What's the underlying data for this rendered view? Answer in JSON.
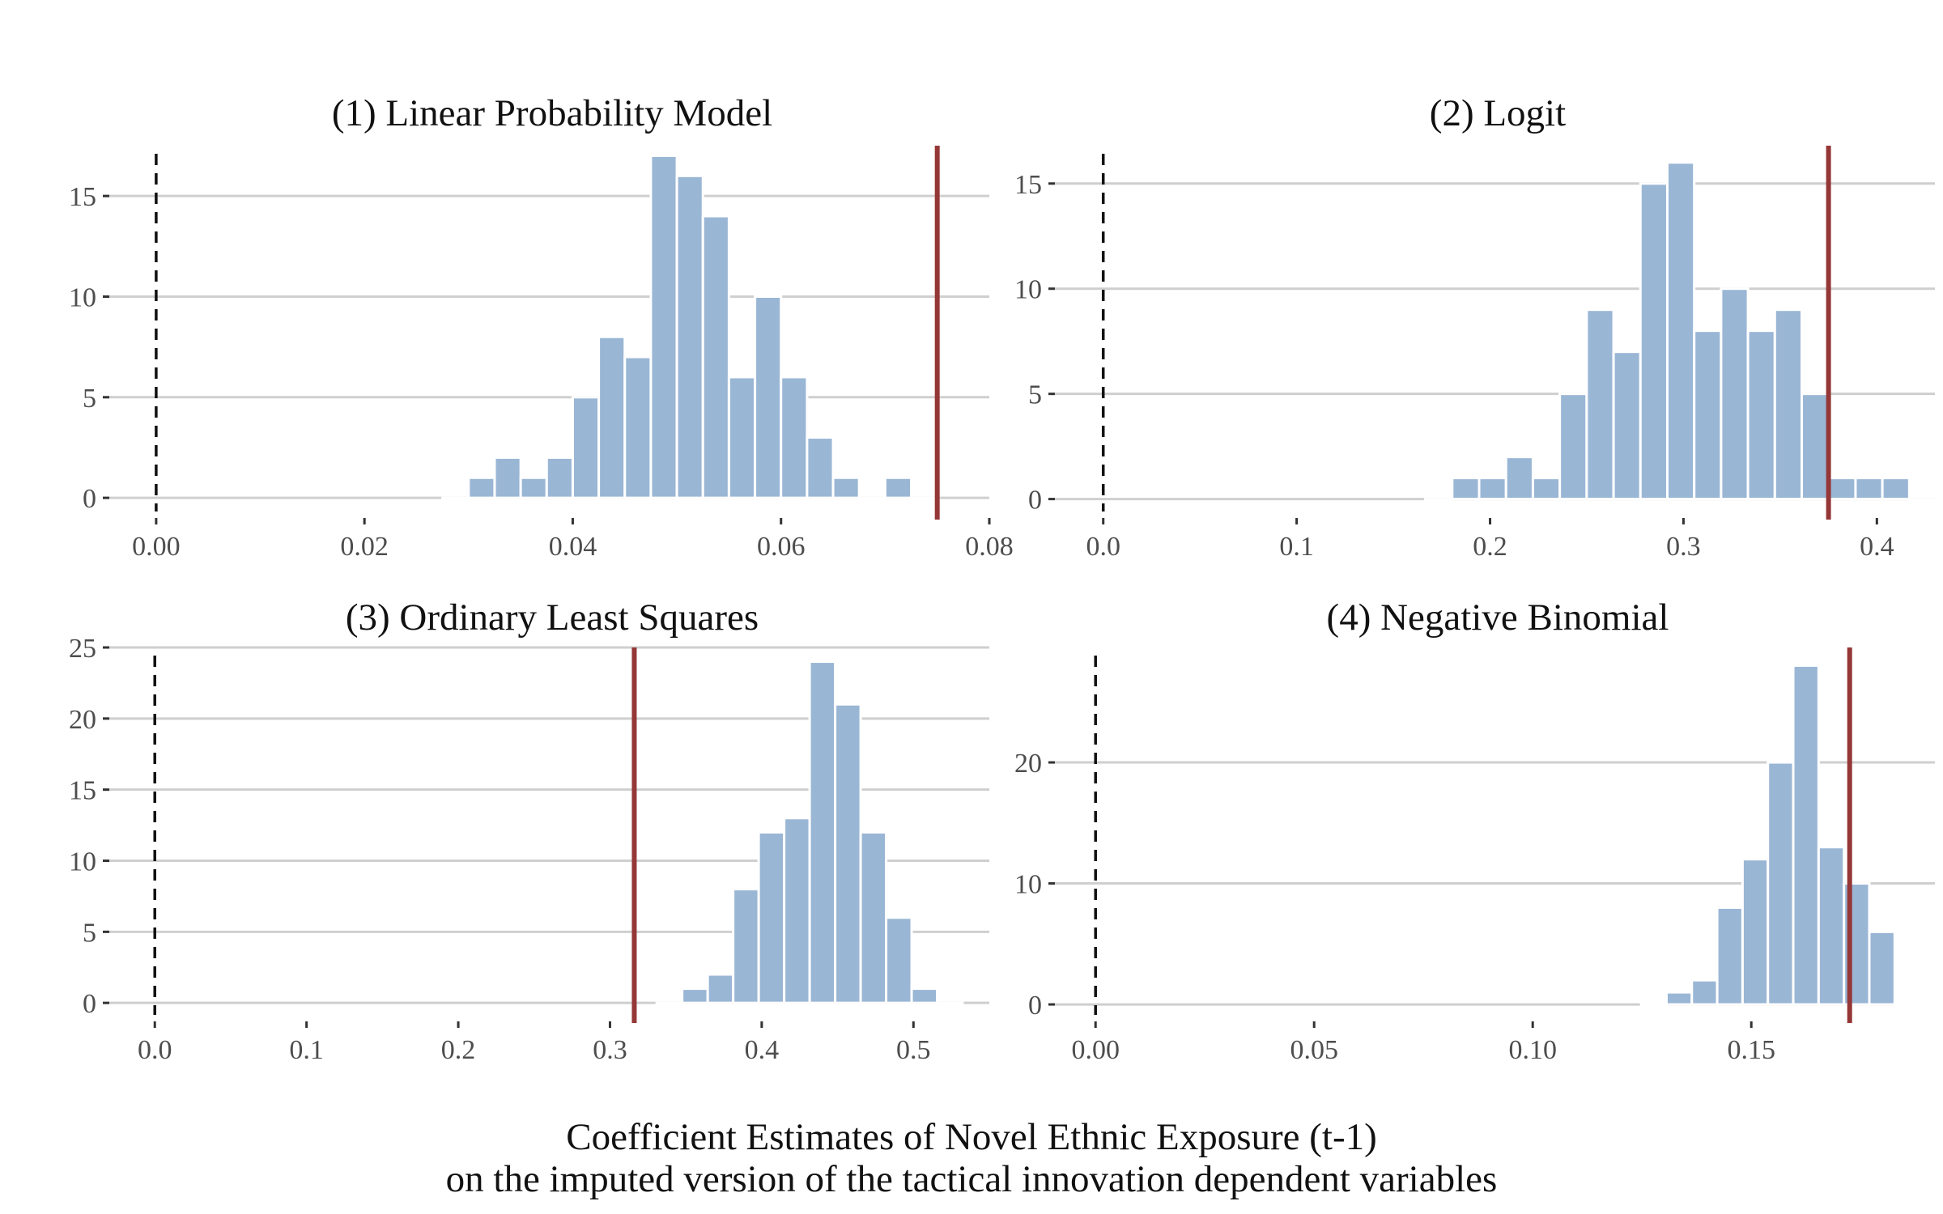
{
  "colors": {
    "bar_fill": "#9ab6d5",
    "reference_line": "#953737",
    "gridline": "#cfcfcf",
    "zero_line": "#111111"
  },
  "figure": {
    "xlabel_line1": "Coefficient Estimates of Novel Ethnic Exposure (t-1)",
    "xlabel_line2": "on the imputed version of the tactical innovation dependent variables"
  },
  "chart_data": [
    {
      "type": "bar",
      "title": "(1) Linear Probability Model",
      "xlim": [
        -0.0045,
        0.08
      ],
      "ylim": [
        -1.0,
        17.5
      ],
      "xticks": [
        0.0,
        0.02,
        0.04,
        0.06,
        0.08
      ],
      "xtick_labels": [
        "0.00",
        "0.02",
        "0.04",
        "0.06",
        "0.08"
      ],
      "yticks": [
        0,
        5,
        10,
        15
      ],
      "ytick_labels": [
        "0",
        "5",
        "10",
        "15"
      ],
      "zero_line": 0,
      "reference_line": 0.075,
      "bin_width": 0.0025,
      "bins": [
        0.02875,
        0.03125,
        0.03375,
        0.03625,
        0.03875,
        0.04125,
        0.04375,
        0.04625,
        0.04875,
        0.05125,
        0.05375,
        0.05625,
        0.05875,
        0.06125,
        0.06375,
        0.06625,
        0.06875,
        0.07125,
        0.07375
      ],
      "counts": [
        0,
        1,
        2,
        1,
        2,
        5,
        8,
        7,
        17,
        16,
        14,
        6,
        10,
        6,
        3,
        1,
        0,
        1,
        0
      ],
      "grid": true,
      "legend": "none"
    },
    {
      "type": "bar",
      "title": "(2) Logit",
      "xlim": [
        -0.025,
        0.43
      ],
      "ylim": [
        -0.9,
        16.8
      ],
      "xticks": [
        0.0,
        0.1,
        0.2,
        0.3,
        0.4
      ],
      "xtick_labels": [
        "0.0",
        "0.1",
        "0.2",
        "0.3",
        "0.4"
      ],
      "yticks": [
        0,
        5,
        10,
        15
      ],
      "ytick_labels": [
        "0",
        "5",
        "10",
        "15"
      ],
      "zero_line": 0,
      "reference_line": 0.375,
      "bin_width": 0.0139,
      "bins": [
        0.1735,
        0.1874,
        0.2013,
        0.2152,
        0.2291,
        0.243,
        0.2569,
        0.2708,
        0.2847,
        0.2986,
        0.3125,
        0.3264,
        0.3403,
        0.3542,
        0.3681,
        0.382,
        0.3959,
        0.4098,
        0.4237
      ],
      "counts": [
        0,
        1,
        1,
        2,
        1,
        5,
        9,
        7,
        15,
        16,
        8,
        10,
        8,
        9,
        5,
        1,
        1,
        1,
        0
      ],
      "grid": true,
      "legend": "none"
    },
    {
      "type": "bar",
      "title": "(3) Ordinary Least Squares",
      "xlim": [
        -0.03,
        0.55
      ],
      "ylim": [
        -1.3,
        25.0
      ],
      "xticks": [
        0.0,
        0.1,
        0.2,
        0.3,
        0.4,
        0.5
      ],
      "xtick_labels": [
        "0.0",
        "0.1",
        "0.2",
        "0.3",
        "0.4",
        "0.5"
      ],
      "yticks": [
        0,
        5,
        10,
        15,
        20,
        25
      ],
      "ytick_labels": [
        "0",
        "5",
        "10",
        "15",
        "20",
        "25"
      ],
      "zero_line": 0,
      "reference_line": 0.316,
      "bin_width": 0.0168,
      "bins": [
        0.3392,
        0.356,
        0.3728,
        0.3896,
        0.4064,
        0.4232,
        0.44,
        0.4568,
        0.4736,
        0.4904,
        0.5072,
        0.524
      ],
      "counts": [
        0,
        1,
        2,
        8,
        12,
        13,
        24,
        21,
        12,
        6,
        1,
        0
      ],
      "grid": true,
      "legend": "none"
    },
    {
      "type": "bar",
      "title": "(4) Negative Binomial",
      "xlim": [
        -0.0093,
        0.192
      ],
      "ylim": [
        -1.4,
        29.5
      ],
      "xticks": [
        0.0,
        0.05,
        0.1,
        0.15
      ],
      "xtick_labels": [
        "0.00",
        "0.05",
        "0.10",
        "0.15"
      ],
      "yticks": [
        0,
        10,
        20
      ],
      "ytick_labels": [
        "0",
        "10",
        "20"
      ],
      "zero_line": 0,
      "reference_line": 0.1725,
      "bin_width": 0.0058,
      "bins": [
        0.1277,
        0.1335,
        0.1393,
        0.1451,
        0.1509,
        0.1567,
        0.1625,
        0.1683,
        0.1741,
        0.1799,
        0.1857,
        0.1915
      ],
      "counts": [
        0,
        1,
        2,
        8,
        12,
        20,
        28,
        13,
        10,
        6,
        0,
        0
      ],
      "grid": true,
      "legend": "none"
    }
  ]
}
